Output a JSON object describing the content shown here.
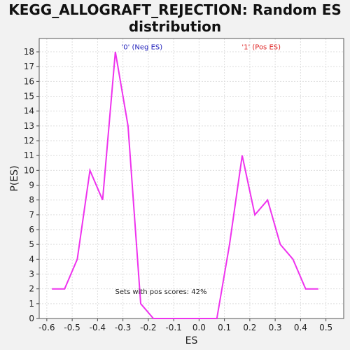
{
  "chart_data": {
    "type": "line",
    "title_lines": [
      "KEGG_ALLOGRAFT_REJECTION: Random ES",
      "distribution"
    ],
    "xlabel": "ES",
    "ylabel": "P(ES)",
    "xlim": [
      -0.63,
      0.57
    ],
    "ylim": [
      0,
      18.9
    ],
    "xticks": [
      "-0.6",
      "-0.5",
      "-0.4",
      "-0.3",
      "-0.2",
      "-0.1",
      "0.0",
      "0.1",
      "0.2",
      "0.3",
      "0.4",
      "0.5"
    ],
    "yticks": [
      "0",
      "1",
      "2",
      "3",
      "4",
      "5",
      "6",
      "7",
      "8",
      "9",
      "10",
      "11",
      "12",
      "13",
      "14",
      "15",
      "16",
      "17",
      "18"
    ],
    "grid": true,
    "series": [
      {
        "color": "#ee33ee",
        "x": [
          -0.58,
          -0.53,
          -0.48,
          -0.43,
          -0.38,
          -0.33,
          -0.28,
          -0.23,
          -0.18,
          -0.13,
          -0.08,
          -0.03,
          0.02,
          0.07,
          0.12,
          0.17,
          0.22,
          0.27,
          0.32,
          0.37,
          0.42,
          0.47
        ],
        "y": [
          2,
          2,
          4,
          10,
          8,
          18,
          13,
          1,
          0,
          0,
          0,
          0,
          0,
          0,
          5,
          11,
          7,
          8,
          5,
          4,
          2,
          2
        ]
      }
    ],
    "annotations": [
      {
        "text": "'0' (Neg ES)",
        "color": "#2222bb",
        "x": -0.225,
        "y": 18.3
      },
      {
        "text": "'1' (Pos ES)",
        "color": "#dd2222",
        "x": 0.245,
        "y": 18.3
      },
      {
        "text": "Sets with pos scores: 42%",
        "color": "#222222",
        "x": -0.15,
        "y": 1.8
      }
    ]
  }
}
